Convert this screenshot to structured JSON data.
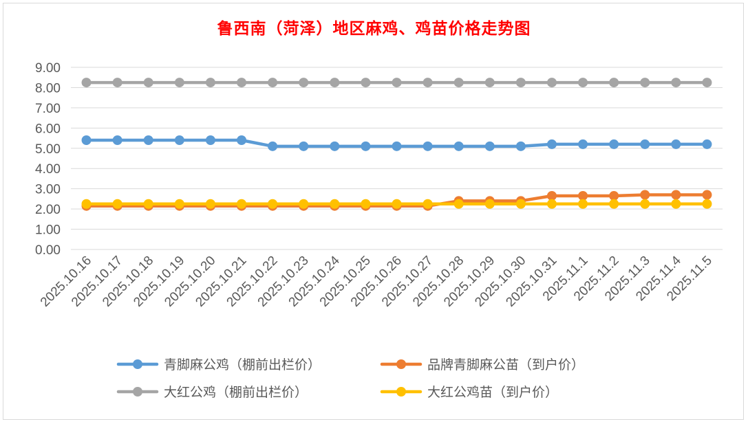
{
  "chart_data": {
    "type": "line",
    "title": "鲁西南（菏泽）地区麻鸡、鸡苗价格走势图",
    "xlabel": "",
    "ylabel": "",
    "ylim": [
      0,
      9
    ],
    "yticks": [
      "0.00",
      "1.00",
      "2.00",
      "3.00",
      "4.00",
      "5.00",
      "6.00",
      "7.00",
      "8.00",
      "9.00"
    ],
    "grid": true,
    "legend_position": "bottom",
    "categories": [
      "2025.10.16",
      "2025.10.17",
      "2025.10.18",
      "2025.10.19",
      "2025.10.20",
      "2025.10.21",
      "2025.10.22",
      "2025.10.23",
      "2025.10.24",
      "2025.10.25",
      "2025.10.26",
      "2025.10.27",
      "2025.10.28",
      "2025.10.29",
      "2025.10.30",
      "2025.10.31",
      "2025.11.1",
      "2025.11.2",
      "2025.11.3",
      "2025.11.4",
      "2025.11.5"
    ],
    "series": [
      {
        "name": "青脚麻公鸡（棚前出栏价）",
        "color": "#5b9bd5",
        "values": [
          5.4,
          5.4,
          5.4,
          5.4,
          5.4,
          5.4,
          5.1,
          5.1,
          5.1,
          5.1,
          5.1,
          5.1,
          5.1,
          5.1,
          5.1,
          5.2,
          5.2,
          5.2,
          5.2,
          5.2,
          5.2
        ]
      },
      {
        "name": "品牌青脚麻公苗（到户价）",
        "color": "#ed7d31",
        "values": [
          2.15,
          2.15,
          2.15,
          2.15,
          2.15,
          2.15,
          2.15,
          2.15,
          2.15,
          2.15,
          2.15,
          2.15,
          2.4,
          2.4,
          2.4,
          2.65,
          2.65,
          2.65,
          2.7,
          2.7,
          2.7
        ]
      },
      {
        "name": "大红公鸡（棚前出栏价）",
        "color": "#a5a5a5",
        "values": [
          8.25,
          8.25,
          8.25,
          8.25,
          8.25,
          8.25,
          8.25,
          8.25,
          8.25,
          8.25,
          8.25,
          8.25,
          8.25,
          8.25,
          8.25,
          8.25,
          8.25,
          8.25,
          8.25,
          8.25,
          8.25
        ]
      },
      {
        "name": "大红公鸡苗（到户价）",
        "color": "#ffc000",
        "values": [
          2.25,
          2.25,
          2.25,
          2.25,
          2.25,
          2.25,
          2.25,
          2.25,
          2.25,
          2.25,
          2.25,
          2.25,
          2.25,
          2.25,
          2.25,
          2.25,
          2.25,
          2.25,
          2.25,
          2.25,
          2.25
        ]
      }
    ],
    "gridline_color": "#d9d9d9",
    "title_color": "#ff0000"
  }
}
